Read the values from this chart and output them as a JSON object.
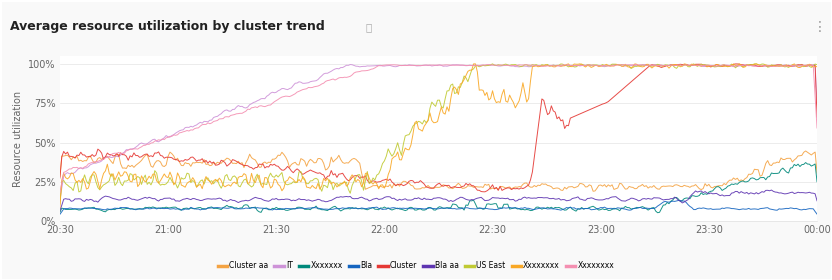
{
  "title": "Average resource utilization by cluster trend",
  "info_icon": "ⓘ",
  "menu_icon": "⋮",
  "ylabel": "Resource utilization",
  "yticks": [
    0,
    25,
    50,
    75,
    100
  ],
  "ytick_labels": [
    "0%",
    "25%",
    "50%",
    "75%",
    "100%"
  ],
  "xtick_labels": [
    "20:30",
    "21:00",
    "21:30",
    "22:00",
    "22:30",
    "23:00",
    "23:30",
    "00:00"
  ],
  "background_color": "#f9f9f9",
  "plot_bg_color": "#ffffff",
  "grid_color": "#e5e5e5",
  "border_color": "#e0e0e0",
  "series": [
    {
      "name": "Cluster aa",
      "color": "#F4A343"
    },
    {
      "name": "IT",
      "color": "#CE93D8"
    },
    {
      "name": "Xxxxxxx",
      "color": "#00897B"
    },
    {
      "name": "Bla",
      "color": "#1565C0"
    },
    {
      "name": "Cluster",
      "color": "#E53935"
    },
    {
      "name": "Bla aa",
      "color": "#5E35B1"
    },
    {
      "name": "US East",
      "color": "#C0CA33"
    },
    {
      "name": "Xxxxxxxx",
      "color": "#F9A825"
    },
    {
      "name": "Xxxxxxxx",
      "color": "#F48FB1"
    }
  ],
  "n_points": 400,
  "title_fontsize": 9,
  "axis_fontsize": 7,
  "label_fontsize": 7
}
